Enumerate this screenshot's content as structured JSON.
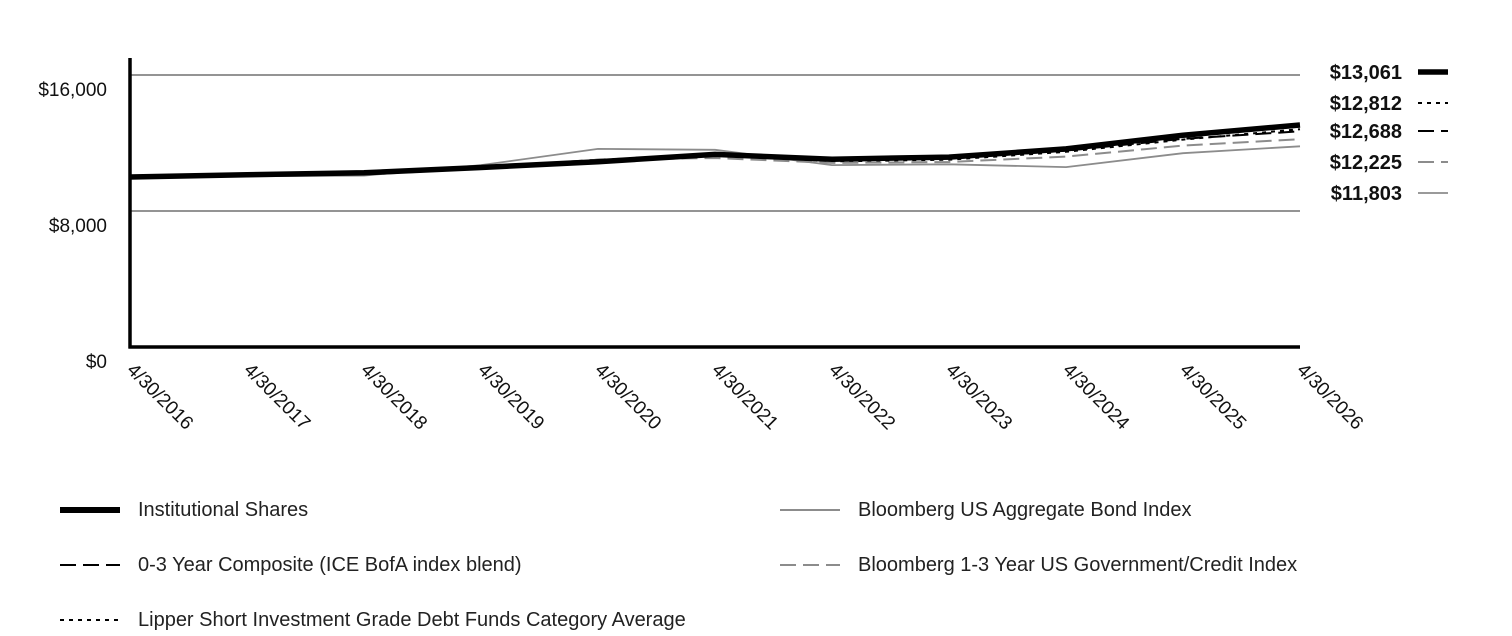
{
  "chart_data": {
    "type": "line",
    "x": [
      "4/30/2016",
      "4/30/2017",
      "4/30/2018",
      "4/30/2019",
      "4/30/2020",
      "4/30/2021",
      "4/30/2022",
      "4/30/2023",
      "4/30/2024",
      "4/30/2025",
      "4/30/2026"
    ],
    "yticks": [
      "$0",
      "$8,000",
      "$16,000"
    ],
    "ylim": [
      0,
      17000
    ],
    "grid": true,
    "legend_position": "bottom",
    "series": [
      {
        "name": "Institutional Shares",
        "color": "#000000",
        "style": "solid-thick",
        "end_label": "$13,061",
        "values": [
          10000,
          10130,
          10250,
          10560,
          10900,
          11330,
          11050,
          11170,
          11650,
          12460,
          13061
        ]
      },
      {
        "name": "Lipper Short Investment Grade Debt Funds Category Average",
        "color": "#000000",
        "style": "dotted",
        "end_label": "$12,812",
        "values": [
          10000,
          10130,
          10200,
          10600,
          10950,
          11300,
          10920,
          11020,
          11480,
          12200,
          12812
        ]
      },
      {
        "name": "0-3 Year Composite (ICE BofA index blend)",
        "color": "#000000",
        "style": "dashed-dark",
        "end_label": "$12,688",
        "values": [
          10000,
          10110,
          10180,
          10560,
          11020,
          11270,
          10970,
          11080,
          11550,
          12250,
          12688
        ]
      },
      {
        "name": "Bloomberg 1-3 Year US Government/Credit Index",
        "color": "#8c8c8c",
        "style": "dashed-gray",
        "end_label": "$12,225",
        "values": [
          10000,
          10080,
          10130,
          10500,
          11020,
          11120,
          10830,
          10880,
          11200,
          11850,
          12225
        ]
      },
      {
        "name": "Bloomberg US Aggregate Bond Index",
        "color": "#8c8c8c",
        "style": "solid-thin",
        "end_label": "$11,803",
        "values": [
          10000,
          10050,
          10080,
          10700,
          11650,
          11600,
          10700,
          10750,
          10580,
          11400,
          11803
        ]
      }
    ]
  },
  "legend": {
    "items": [
      {
        "label": "Institutional Shares",
        "style": "solid-thick"
      },
      {
        "label": "Bloomberg US Aggregate Bond Index",
        "style": "solid-thin"
      },
      {
        "label": "0-3 Year Composite (ICE BofA index blend)",
        "style": "dashed-dark"
      },
      {
        "label": "Bloomberg 1-3 Year US Government/Credit Index",
        "style": "dashed-gray"
      },
      {
        "label": "Lipper Short Investment Grade Debt Funds Category Average",
        "style": "dotted"
      }
    ]
  }
}
